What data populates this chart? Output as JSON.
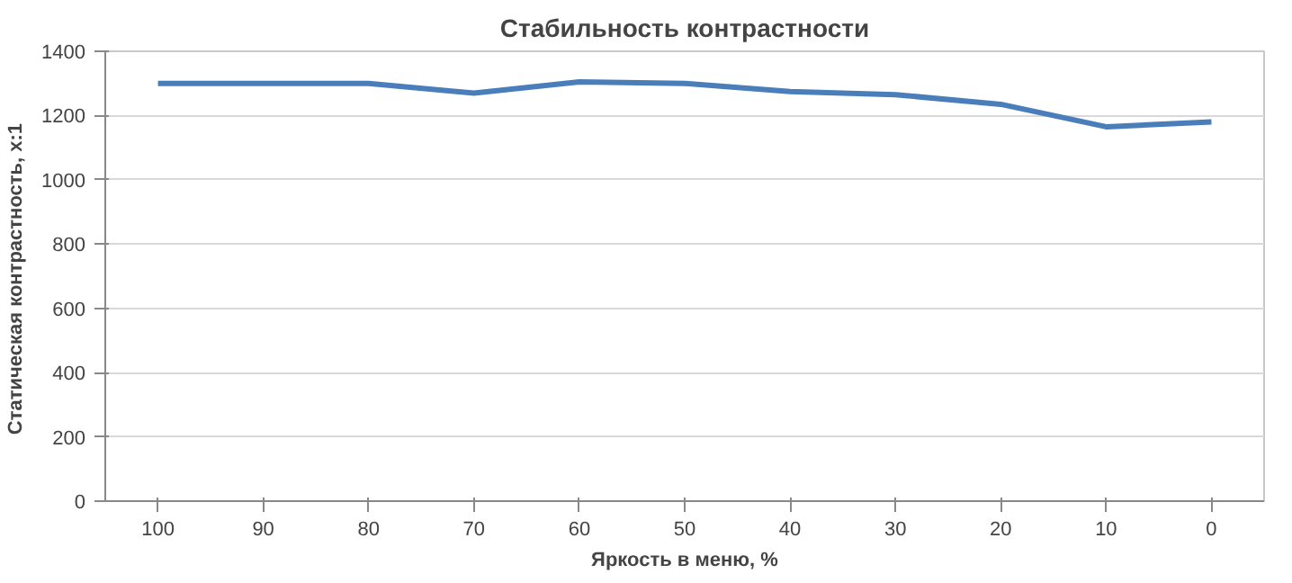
{
  "chart_data": {
    "type": "line",
    "title": "Стабильность контрастности",
    "xlabel": "Яркость в меню, %",
    "ylabel": "Статическая  контрастность, x:1",
    "categories": [
      "100",
      "90",
      "80",
      "70",
      "60",
      "50",
      "40",
      "30",
      "20",
      "10",
      "0"
    ],
    "series": [
      {
        "color": "#4a7ebb",
        "values": [
          1300,
          1300,
          1300,
          1270,
          1305,
          1300,
          1275,
          1265,
          1235,
          1165,
          1180
        ]
      }
    ],
    "ylim": [
      0,
      1400
    ],
    "yticks": [
      0,
      200,
      400,
      600,
      800,
      1000,
      1200,
      1400
    ],
    "grid": "y",
    "marker": "none",
    "line_style": "solid"
  }
}
